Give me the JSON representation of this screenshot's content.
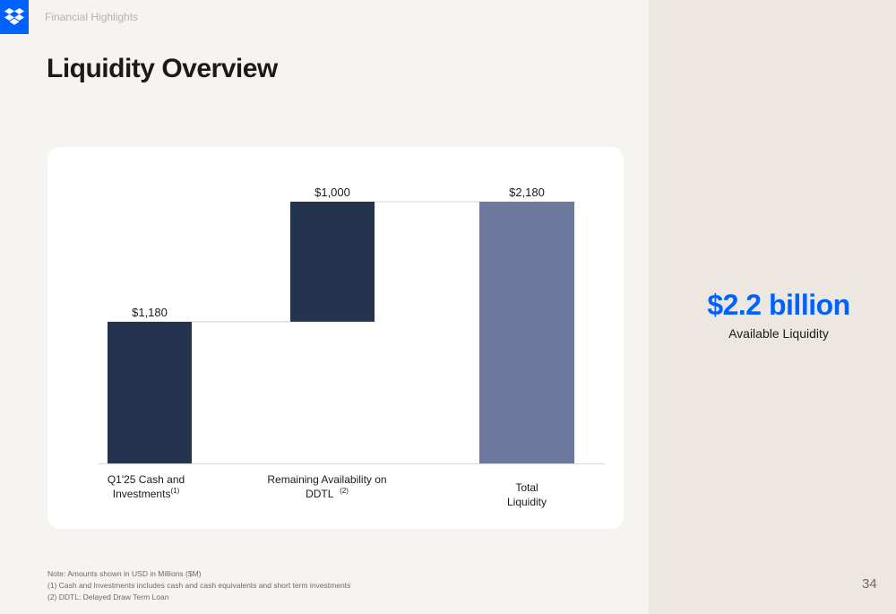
{
  "header": {
    "section_label": "Financial Highlights",
    "title": "Liquidity Overview"
  },
  "colors": {
    "dark_bar": "#25344e",
    "total_bar": "#6c789c",
    "accent": "#0061fe"
  },
  "chart_data": {
    "type": "bar",
    "variant": "waterfall",
    "categories": [
      {
        "label_line1": "Q1'25 Cash and",
        "label_line2": "Investments",
        "footnote": "(1)"
      },
      {
        "label_line1": "Remaining Availability on",
        "label_line2": "DDTL",
        "footnote": "(2)"
      },
      {
        "label_line1": "Total",
        "label_line2": "Liquidity",
        "footnote": ""
      }
    ],
    "values": [
      1180,
      1000,
      2180
    ],
    "data_labels": [
      "$1,180",
      "$1,000",
      "$2,180"
    ],
    "bar_kinds": [
      "increase",
      "increase",
      "total"
    ],
    "ylim": [
      0,
      2180
    ],
    "grid": false,
    "unit": "USD Millions"
  },
  "kpi": {
    "value": "$2.2 billion",
    "label": "Available Liquidity"
  },
  "notes": [
    "Note: Amounts shown in USD in Millions ($M)",
    "(1) Cash and Investments includes cash and cash equivalents and short term investments",
    "(2) DDTL: Delayed Draw Term Loan"
  ],
  "page_number": "34"
}
